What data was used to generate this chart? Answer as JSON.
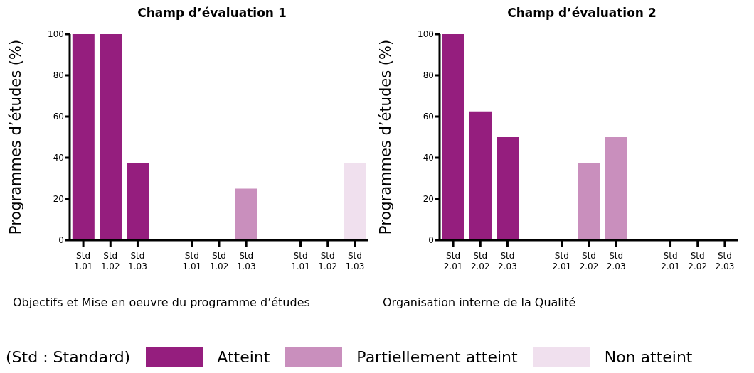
{
  "chart_data": [
    {
      "type": "bar",
      "title": "Champ d’évaluation 1",
      "xlabel": "Objectifs et Mise en oeuvre du programme d’études",
      "ylabel": "Programmes d’études (%)",
      "categories": [
        "Std 1.01",
        "Std 1.02",
        "Std 1.03",
        null,
        "Std 1.01",
        "Std 1.02",
        "Std 1.03",
        null,
        "Std 1.01",
        "Std 1.02",
        "Std 1.03"
      ],
      "stacked": true,
      "ylim": [
        0,
        100
      ],
      "yticks": [
        0,
        20,
        40,
        60,
        80,
        100
      ],
      "legend": "bottom",
      "annotations": [
        "(Std : Standard)"
      ],
      "series": [
        {
          "name": "Atteint",
          "color": "#951e7e",
          "values": [
            100,
            100,
            37.5,
            null,
            null,
            null,
            null,
            null,
            null,
            null,
            null
          ]
        },
        {
          "name": "Partiellement atteint",
          "color": "#c98fbd",
          "values": [
            null,
            null,
            null,
            null,
            0,
            0,
            25,
            null,
            null,
            null,
            null
          ]
        },
        {
          "name": "Non atteint",
          "color": "#f0e0ee",
          "values": [
            null,
            null,
            null,
            null,
            null,
            null,
            null,
            null,
            0,
            0,
            37.5
          ]
        }
      ]
    },
    {
      "type": "bar",
      "title": "Champ d’évaluation 2",
      "xlabel": "Organisation interne de la Qualité",
      "ylabel": "Programmes d’études (%)",
      "categories": [
        "Std 2.01",
        "Std 2.02",
        "Std 2.03",
        null,
        "Std 2.01",
        "Std 2.02",
        "Std 2.03",
        null,
        "Std 2.01",
        "Std 2.02",
        "Std 2.03"
      ],
      "stacked": true,
      "ylim": [
        0,
        100
      ],
      "yticks": [
        0,
        20,
        40,
        60,
        80,
        100
      ],
      "series": [
        {
          "color": "#951e7e",
          "values": [
            100,
            62.5,
            50,
            null,
            null,
            null,
            null,
            null,
            null,
            null,
            null
          ]
        },
        {
          "color": "#c98fbd",
          "values": [
            null,
            null,
            null,
            null,
            0,
            37.5,
            50,
            null,
            null,
            null,
            null
          ]
        },
        {
          "color": "#f0e0ee",
          "values": [
            null,
            null,
            null,
            null,
            null,
            null,
            null,
            null,
            0,
            0,
            0
          ]
        }
      ]
    }
  ]
}
